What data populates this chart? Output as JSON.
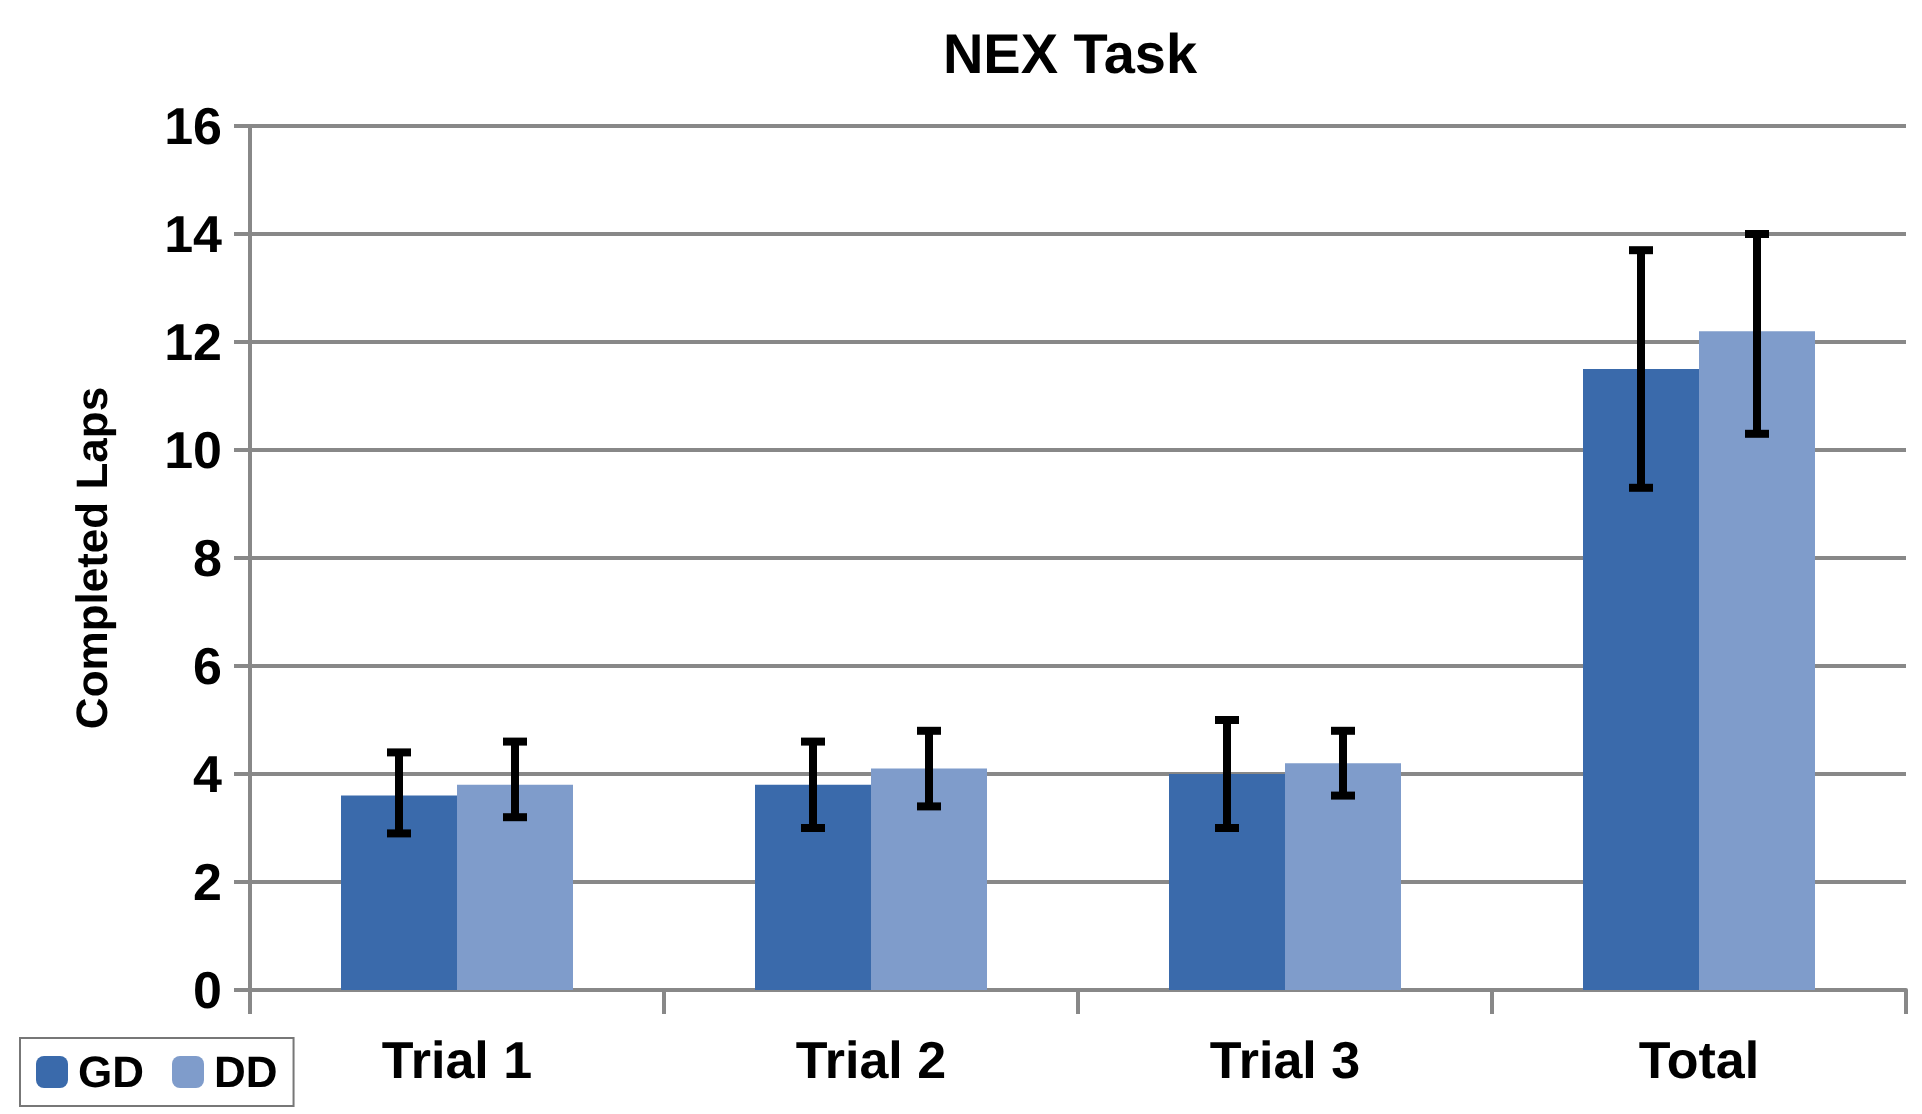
{
  "chart_data": {
    "type": "bar",
    "title": "NEX Task",
    "ylabel": "Completed Laps",
    "categories": [
      "Trial 1",
      "Trial 2",
      "Trial 3",
      "Total"
    ],
    "series": [
      {
        "name": "GD",
        "color": "#3a6aab",
        "values": [
          3.6,
          3.8,
          4.0,
          11.5
        ],
        "errors": [
          [
            2.9,
            4.4
          ],
          [
            3.0,
            4.6
          ],
          [
            3.0,
            5.0
          ],
          [
            9.3,
            13.7
          ]
        ]
      },
      {
        "name": "DD",
        "color": "#7f9ccb",
        "values": [
          3.8,
          4.1,
          4.2,
          12.2
        ],
        "errors": [
          [
            3.2,
            4.6
          ],
          [
            3.4,
            4.8
          ],
          [
            3.6,
            4.8
          ],
          [
            10.3,
            14.0
          ]
        ]
      }
    ],
    "ylim": [
      0,
      16
    ],
    "yticks": [
      0,
      2,
      4,
      6,
      8,
      10,
      12,
      14,
      16
    ],
    "grid": "y",
    "legend": "bottom left"
  }
}
